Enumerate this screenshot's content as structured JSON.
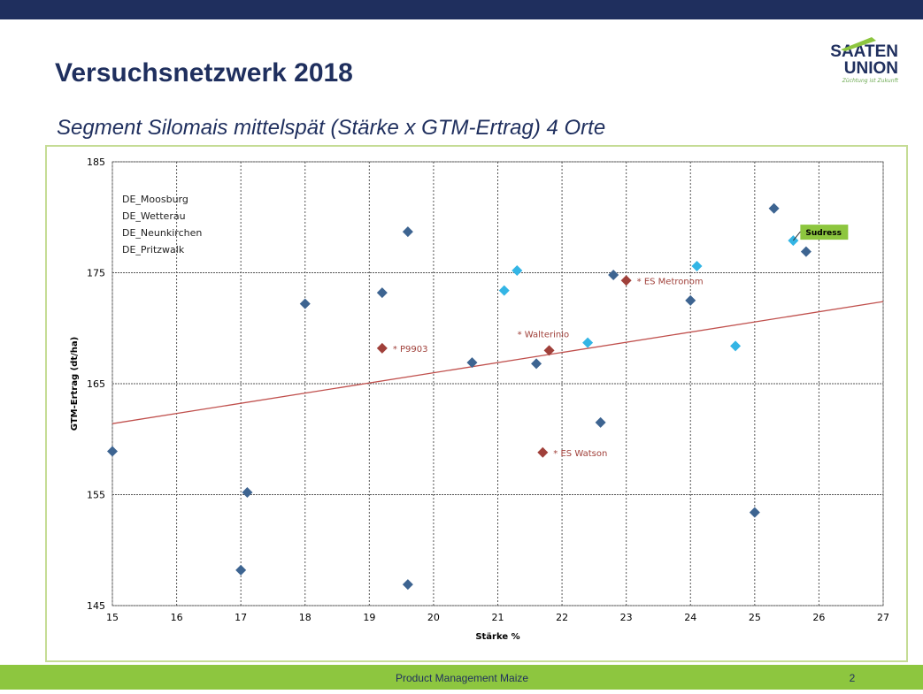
{
  "slide": {
    "title": "Versuchsnetzwerk 2018",
    "logo_line1": "SAATEN",
    "logo_line2": "UNION",
    "logo_tagline": "Züchtung ist Zukunft",
    "footer": "Product Management Maize",
    "page": "2"
  },
  "chart_data": {
    "type": "scatter",
    "title": "Segment Silomais mittelspät (Stärke x GTM-Ertrag) 4 Orte",
    "x_label": "Stärke %",
    "y_label": "GTM-Ertrag (dt/ha)",
    "legend": [
      "DE_Moosburg",
      "DE_Wetterau",
      "DE_Neunkirchen",
      "DE_Pritzwalk"
    ],
    "xlim": [
      15,
      27
    ],
    "xticks": [
      15,
      16,
      17,
      18,
      19,
      20,
      21,
      22,
      23,
      24,
      25,
      26,
      27
    ],
    "ylim": [
      145,
      185
    ],
    "yticks": [
      145,
      155,
      165,
      175,
      185
    ],
    "grid": true,
    "series": [
      {
        "color": "#3d6491",
        "x": [
          15,
          17.1,
          17,
          18,
          19.2,
          19.6,
          19.6,
          20.6,
          21.6,
          22.8,
          22.6,
          24,
          25,
          25.3,
          25.8
        ],
        "values": [
          158.9,
          155.2,
          148.2,
          172.2,
          173.2,
          178.7,
          146.9,
          166.9,
          166.8,
          174.8,
          161.5,
          172.5,
          153.4,
          180.8,
          176.9
        ]
      },
      {
        "color": "#33b5e5",
        "x": [
          21.1,
          21.3,
          22.4,
          24.1,
          24.7,
          25.6
        ],
        "values": [
          173.4,
          175.2,
          168.7,
          175.6,
          168.4,
          177.9
        ],
        "labels": [
          null,
          null,
          null,
          null,
          null,
          "Sudress"
        ]
      },
      {
        "color": "#a0403a",
        "x": [
          19.2,
          21.8,
          23,
          21.7
        ],
        "values": [
          168.2,
          168.0,
          174.3,
          158.8
        ],
        "labels": [
          "* P9903",
          "* Walterinio",
          "* ES Metronom",
          "* ES Watson"
        ]
      }
    ],
    "trendline": {
      "color": "#c0504d",
      "x": [
        15,
        27
      ],
      "values": [
        161.4,
        172.4
      ]
    }
  }
}
